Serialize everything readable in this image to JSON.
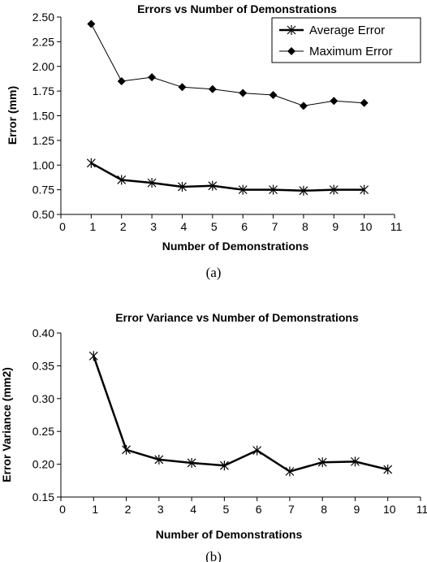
{
  "chart_data": [
    {
      "type": "line",
      "title": "Errors vs Number of Demonstrations",
      "xlabel": "Number of Demonstrations",
      "ylabel": "Error (mm)",
      "xlim": [
        0,
        11
      ],
      "ylim": [
        0.5,
        2.5
      ],
      "xticks": [
        0,
        1,
        2,
        3,
        4,
        5,
        6,
        7,
        8,
        9,
        10,
        11
      ],
      "yticks": [
        "0.50",
        "0.75",
        "1.00",
        "1.25",
        "1.50",
        "1.75",
        "2.00",
        "2.25",
        "2.50"
      ],
      "x": [
        1,
        2,
        3,
        4,
        5,
        6,
        7,
        8,
        9,
        10
      ],
      "series": [
        {
          "name": "Average Error",
          "marker": "star",
          "values": [
            1.02,
            0.85,
            0.82,
            0.78,
            0.79,
            0.75,
            0.75,
            0.74,
            0.75,
            0.75
          ]
        },
        {
          "name": "Maximum Error",
          "marker": "diamond",
          "values": [
            2.43,
            1.85,
            1.89,
            1.79,
            1.77,
            1.73,
            1.71,
            1.6,
            1.65,
            1.63
          ]
        }
      ],
      "legend": "top-right",
      "caption": "(a)"
    },
    {
      "type": "line",
      "title": "Error Variance vs Number of Demonstrations",
      "xlabel": "Number of Demonstrations",
      "ylabel": "Error Variance (mm2)",
      "xlim": [
        0,
        11
      ],
      "ylim": [
        0.15,
        0.4
      ],
      "xticks": [
        0,
        1,
        2,
        3,
        4,
        5,
        6,
        7,
        8,
        9,
        10,
        11
      ],
      "yticks": [
        "0.15",
        "0.20",
        "0.25",
        "0.30",
        "0.35",
        "0.40"
      ],
      "x": [
        1,
        2,
        3,
        4,
        5,
        6,
        7,
        8,
        9,
        10
      ],
      "series": [
        {
          "name": "Error Variance",
          "marker": "star",
          "values": [
            0.365,
            0.222,
            0.207,
            0.202,
            0.198,
            0.221,
            0.189,
            0.203,
            0.204,
            0.192
          ]
        }
      ],
      "caption": "(b)"
    }
  ]
}
